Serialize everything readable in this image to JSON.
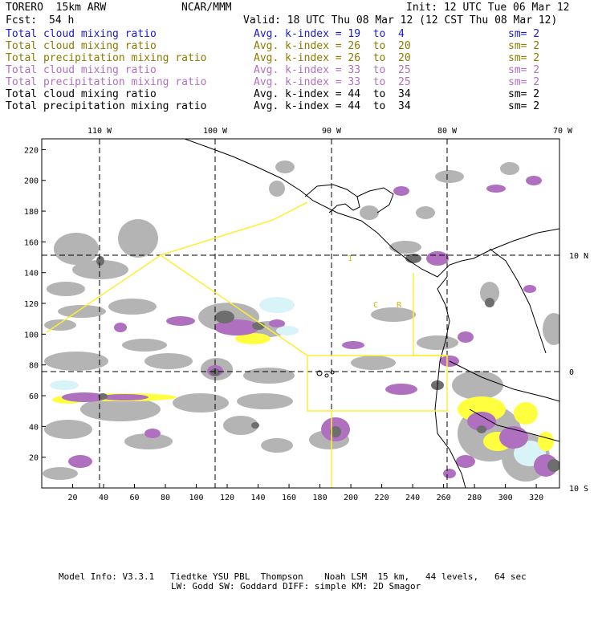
{
  "header": {
    "model": "TORERO  15km ARW",
    "org": "NCAR/MMM",
    "init": "Init: 12 UTC Tue 06 Mar 12",
    "fcst_label": "Fcst:",
    "fcst_hours": "54 h",
    "valid": "Valid: 18 UTC Thu 08 Mar 12 (12 CST Thu 08 Mar 12)"
  },
  "legend": [
    {
      "field": "Total cloud mixing ratio",
      "index_label": "Avg. k-index =",
      "from": "19",
      "to_word": "to",
      "to": "4",
      "sm": "sm= 2",
      "color": "#1a1acc"
    },
    {
      "field": "Total cloud mixing ratio",
      "index_label": "Avg. k-index =",
      "from": "26",
      "to_word": "to",
      "to": "20",
      "sm": "sm= 2",
      "color": "#8a7a00"
    },
    {
      "field": "Total precipitation mixing ratio",
      "index_label": "Avg. k-index =",
      "from": "26",
      "to_word": "to",
      "to": "20",
      "sm": "sm= 2",
      "color": "#8a7a00"
    },
    {
      "field": "Total cloud mixing ratio",
      "index_label": "Avg. k-index =",
      "from": "33",
      "to_word": "to",
      "to": "25",
      "sm": "sm= 2",
      "color": "#b070c0"
    },
    {
      "field": "Total precipitation mixing ratio",
      "index_label": "Avg. k-index =",
      "from": "33",
      "to_word": "to",
      "to": "25",
      "sm": "sm= 2",
      "color": "#b070c0"
    },
    {
      "field": "Total cloud mixing ratio",
      "index_label": "Avg. k-index =",
      "from": "44",
      "to_word": "to",
      "to": "34",
      "sm": "sm= 2",
      "color": "#000000"
    },
    {
      "field": "Total precipitation mixing ratio",
      "index_label": "Avg. k-index =",
      "from": "44",
      "to_word": "to",
      "to": "34",
      "sm": "sm= 2",
      "color": "#000000"
    }
  ],
  "map": {
    "top_lon_labels": [
      "110 W",
      "100 W",
      "90 W",
      "80 W",
      "70 W"
    ],
    "right_lat_labels": [
      "10 N",
      "0",
      "10 S"
    ],
    "y_ticks": [
      "220",
      "200",
      "180",
      "160",
      "140",
      "120",
      "100",
      "80",
      "60",
      "40",
      "20"
    ],
    "x_ticks": [
      "20",
      "40",
      "60",
      "80",
      "100",
      "120",
      "140",
      "160",
      "180",
      "200",
      "220",
      "240",
      "260",
      "280",
      "300",
      "320"
    ],
    "box_labels": [
      "1",
      "C",
      "R"
    ],
    "colors": {
      "cloud_gray": "#b4b4b4",
      "dark_gray": "#6e6e6e",
      "purple": "#b070c0",
      "yellow": "#ffff40",
      "cyan": "#d8f4f8",
      "track": "#ffee33"
    }
  },
  "footer": {
    "line1": "Model Info: V3.3.1   Tiedtke YSU PBL  Thompson    Noah LSM  15 km,   44 levels,   64 sec",
    "line2": "LW: Godd SW: Goddard DIFF: simple KM: 2D Smagor"
  }
}
